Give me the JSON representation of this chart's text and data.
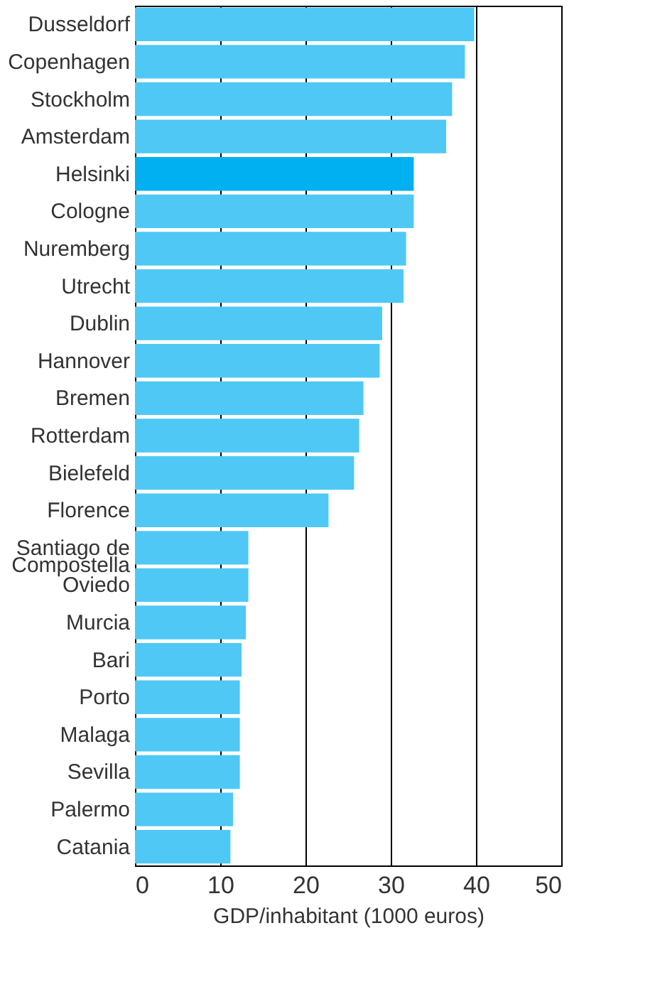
{
  "chart_data": {
    "type": "bar",
    "orientation": "horizontal",
    "xlabel": "GDP/inhabitant (1000 euros)",
    "categories": [
      "Dusseldorf",
      "Copenhagen",
      "Stockholm",
      "Amsterdam",
      "Helsinki",
      "Cologne",
      "Nuremberg",
      "Utrecht",
      "Dublin",
      "Hannover",
      "Bremen",
      "Rotterdam",
      "Bielefeld",
      "Florence",
      "Santiago de Compostella",
      "Oviedo",
      "Murcia",
      "Bari",
      "Porto",
      "Malaga",
      "Sevilla",
      "Palermo",
      "Catania"
    ],
    "values": [
      39.8,
      38.7,
      37.2,
      36.5,
      32.7,
      32.7,
      31.8,
      31.5,
      29,
      28.7,
      26.8,
      26.3,
      25.7,
      22.7,
      13.3,
      13.3,
      13,
      12.5,
      12.3,
      12.3,
      12.3,
      11.5,
      11.2
    ],
    "colors": [
      "#4fc8f5",
      "#4fc8f5",
      "#4fc8f5",
      "#4fc8f5",
      "#00b0f0",
      "#4fc8f5",
      "#4fc8f5",
      "#4fc8f5",
      "#4fc8f5",
      "#4fc8f5",
      "#4fc8f5",
      "#4fc8f5",
      "#4fc8f5",
      "#4fc8f5",
      "#4fc8f5",
      "#4fc8f5",
      "#4fc8f5",
      "#4fc8f5",
      "#4fc8f5",
      "#4fc8f5",
      "#4fc8f5",
      "#4fc8f5",
      "#4fc8f5"
    ],
    "xlim": [
      0,
      50
    ],
    "xticks": [
      0,
      10,
      20,
      30,
      40,
      50
    ],
    "grid": "x"
  }
}
